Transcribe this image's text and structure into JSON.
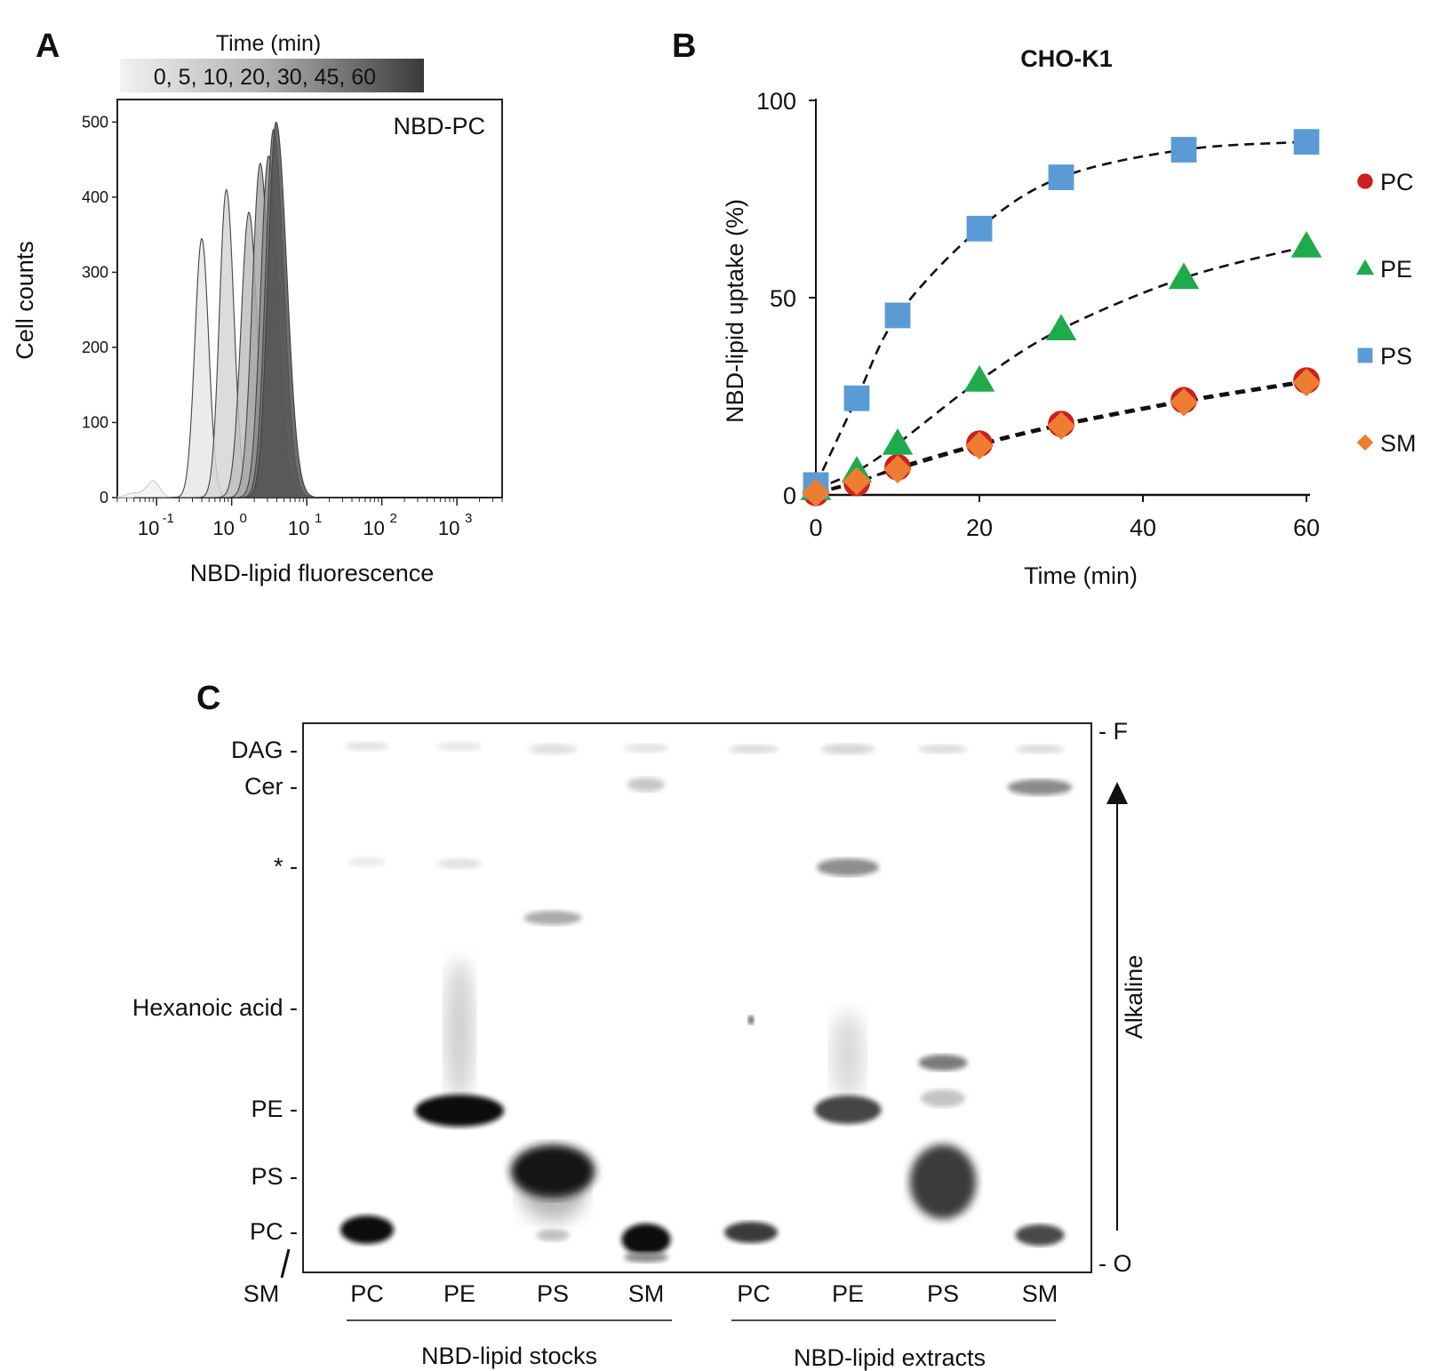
{
  "panels": {
    "a": "A",
    "b": "B",
    "c": "C"
  },
  "panel_a": {
    "gradient_title": "Time (min)",
    "gradient_label": "0, 5, 10, 20, 30, 45, 60",
    "inset_label": "NBD-PC",
    "ylabel": "Cell counts",
    "xlabel": "NBD-lipid fluorescence",
    "y_ticks": [
      "0",
      "100",
      "200",
      "300",
      "400",
      "500"
    ],
    "x_tick_bases": [
      "10",
      "10",
      "10",
      "10",
      "10"
    ],
    "x_tick_exponents": [
      "-1",
      "0",
      "1",
      "2",
      "3"
    ]
  },
  "panel_c": {
    "left_bands": [
      "DAG -",
      "Cer -",
      "* -",
      "Hexanoic acid -",
      "PE -",
      "PS -",
      "PC -"
    ],
    "sm_label": "SM",
    "right_labels": [
      "- F",
      "- O"
    ],
    "direction_label": "Alkaline",
    "lanes": [
      "PC",
      "PE",
      "PS",
      "SM",
      "PC",
      "PE",
      "PS",
      "SM"
    ],
    "groups": [
      "NBD-lipid stocks",
      "NBD-lipid extracts"
    ]
  },
  "chart_data": [
    {
      "type": "area",
      "title": "",
      "subtitle": "NBD-PC",
      "xlabel": "NBD-lipid fluorescence",
      "ylabel": "Cell counts",
      "x_scale": "log",
      "xlim": [
        0.03,
        4000
      ],
      "ylim": [
        0,
        530
      ],
      "series": [
        {
          "name": "0",
          "peak_x": 0.4,
          "peak_y": 345,
          "color": "#e8e8e8"
        },
        {
          "name": "5",
          "peak_x": 0.85,
          "peak_y": 410,
          "color": "#d6d6d6"
        },
        {
          "name": "10",
          "peak_x": 1.7,
          "peak_y": 380,
          "color": "#c0c0c0"
        },
        {
          "name": "20",
          "peak_x": 2.4,
          "peak_y": 445,
          "color": "#a8a8a8"
        },
        {
          "name": "30",
          "peak_x": 3.1,
          "peak_y": 455,
          "color": "#8c8c8c"
        },
        {
          "name": "45",
          "peak_x": 3.6,
          "peak_y": 490,
          "color": "#6e6e6e"
        },
        {
          "name": "60",
          "peak_x": 3.9,
          "peak_y": 500,
          "color": "#555555"
        }
      ],
      "debris_peak": {
        "x": 0.09,
        "y": 22
      }
    },
    {
      "type": "scatter",
      "title": "CHO-K1",
      "xlabel": "Time (min)",
      "ylabel": "NBD-lipid uptake (%)",
      "x": [
        0,
        5,
        10,
        20,
        30,
        45,
        60
      ],
      "xlim": [
        0,
        60
      ],
      "ylim": [
        0,
        100
      ],
      "x_ticks": [
        0,
        20,
        40,
        60
      ],
      "y_ticks": [
        0,
        50,
        100
      ],
      "legend_position": "right",
      "series": [
        {
          "name": "PC",
          "marker": "circle",
          "color": "#cc1f1f",
          "values": [
            0.5,
            3,
            7,
            13,
            18,
            24,
            29
          ]
        },
        {
          "name": "PE",
          "marker": "triangle",
          "color": "#1faa4c",
          "values": [
            1.5,
            6,
            13,
            29,
            42,
            55,
            63
          ]
        },
        {
          "name": "PS",
          "marker": "square",
          "color": "#5b9bd5",
          "values": [
            2.5,
            24.5,
            45.5,
            67.5,
            80.5,
            87.5,
            89.5
          ]
        },
        {
          "name": "SM",
          "marker": "diamond",
          "color": "#ed7d31",
          "values": [
            0.5,
            3.5,
            6.5,
            12.5,
            17.5,
            23.5,
            28.5
          ]
        }
      ]
    }
  ]
}
